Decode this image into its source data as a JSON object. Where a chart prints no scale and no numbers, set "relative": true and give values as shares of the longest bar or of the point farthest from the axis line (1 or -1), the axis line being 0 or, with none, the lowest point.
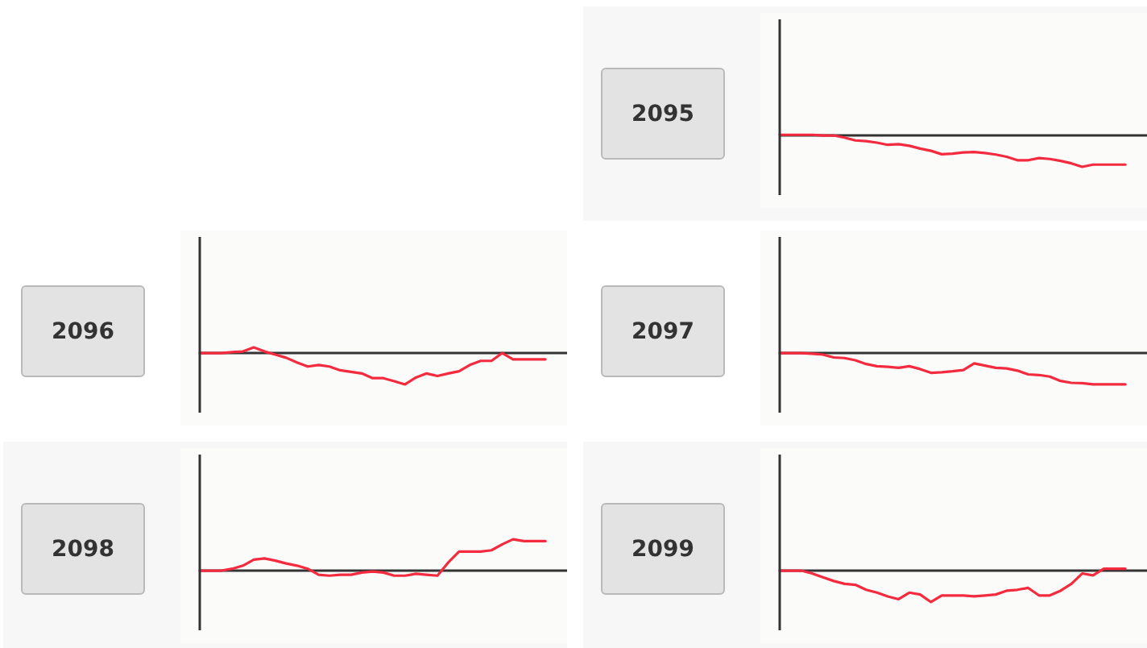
{
  "chart_data": [
    {
      "type": "line",
      "title": "2095",
      "relative": true,
      "color": "#f42a3e",
      "categories": [
        null,
        null,
        null,
        null,
        null,
        null,
        null,
        null,
        null,
        null,
        null,
        null,
        null,
        null,
        null,
        null,
        null,
        null,
        null,
        null,
        null,
        null,
        null,
        null,
        null,
        null,
        null,
        null,
        null,
        null,
        null,
        null,
        null,
        null,
        null
      ],
      "values": [
        0.02,
        0.02,
        0.02,
        0.02,
        0,
        0,
        -0.07,
        -0.16,
        -0.18,
        -0.23,
        -0.3,
        -0.28,
        -0.33,
        -0.42,
        -0.49,
        -0.6,
        -0.58,
        -0.54,
        -0.53,
        -0.56,
        -0.61,
        -0.68,
        -0.79,
        -0.79,
        -0.72,
        -0.75,
        -0.81,
        -0.89,
        -1,
        -0.93,
        -0.93,
        -0.93,
        -0.93,
        null,
        null
      ]
    },
    {
      "type": "line",
      "title": "2096",
      "relative": true,
      "color": "#f42a3e",
      "categories": [
        null,
        null,
        null,
        null,
        null,
        null,
        null,
        null,
        null,
        null,
        null,
        null,
        null,
        null,
        null,
        null,
        null,
        null,
        null,
        null,
        null,
        null,
        null,
        null,
        null,
        null,
        null,
        null,
        null,
        null,
        null,
        null,
        null,
        null,
        null
      ],
      "values": [
        0,
        0,
        0,
        0.03,
        0.05,
        0.18,
        0.05,
        -0.05,
        -0.15,
        -0.3,
        -0.43,
        -0.38,
        -0.43,
        -0.55,
        -0.6,
        -0.65,
        -0.8,
        -0.8,
        -0.9,
        -1,
        -0.78,
        -0.65,
        -0.73,
        -0.65,
        -0.58,
        -0.38,
        -0.25,
        -0.25,
        0,
        -0.2,
        -0.2,
        -0.2,
        -0.2,
        null,
        null
      ]
    },
    {
      "type": "line",
      "title": "2097",
      "relative": true,
      "color": "#f42a3e",
      "categories": [
        null,
        null,
        null,
        null,
        null,
        null,
        null,
        null,
        null,
        null,
        null,
        null,
        null,
        null,
        null,
        null,
        null,
        null,
        null,
        null,
        null,
        null,
        null,
        null,
        null,
        null,
        null,
        null,
        null,
        null,
        null,
        null,
        null,
        null,
        null
      ],
      "values": [
        0,
        0,
        0,
        -0.02,
        -0.05,
        -0.14,
        -0.16,
        -0.23,
        -0.35,
        -0.42,
        -0.44,
        -0.47,
        -0.42,
        -0.51,
        -0.63,
        -0.61,
        -0.58,
        -0.54,
        -0.33,
        -0.4,
        -0.47,
        -0.49,
        -0.56,
        -0.68,
        -0.7,
        -0.75,
        -0.89,
        -0.95,
        -0.96,
        -1,
        -1,
        -1,
        -1,
        null,
        null
      ]
    },
    {
      "type": "line",
      "title": "2098",
      "relative": true,
      "color": "#f42a3e",
      "categories": [
        null,
        null,
        null,
        null,
        null,
        null,
        null,
        null,
        null,
        null,
        null,
        null,
        null,
        null,
        null,
        null,
        null,
        null,
        null,
        null,
        null,
        null,
        null,
        null,
        null,
        null,
        null,
        null,
        null,
        null,
        null,
        null,
        null,
        null,
        null
      ],
      "values": [
        0,
        0,
        0,
        0.06,
        0.16,
        0.35,
        0.39,
        0.32,
        0.23,
        0.16,
        0.06,
        -0.13,
        -0.16,
        -0.13,
        -0.13,
        -0.06,
        -0.03,
        -0.06,
        -0.16,
        -0.16,
        -0.1,
        -0.13,
        -0.16,
        0.26,
        0.61,
        0.61,
        0.61,
        0.65,
        0.84,
        1,
        0.94,
        0.94,
        0.94,
        null,
        null
      ]
    },
    {
      "type": "line",
      "title": "2099",
      "relative": true,
      "color": "#f42a3e",
      "categories": [
        null,
        null,
        null,
        null,
        null,
        null,
        null,
        null,
        null,
        null,
        null,
        null,
        null,
        null,
        null,
        null,
        null,
        null,
        null,
        null,
        null,
        null,
        null,
        null,
        null,
        null,
        null,
        null,
        null,
        null,
        null,
        null,
        null,
        null,
        null
      ],
      "values": [
        0,
        0,
        0,
        -0.09,
        -0.21,
        -0.33,
        -0.42,
        -0.45,
        -0.61,
        -0.7,
        -0.82,
        -0.91,
        -0.7,
        -0.76,
        -1,
        -0.79,
        -0.79,
        -0.79,
        -0.82,
        -0.79,
        -0.76,
        -0.64,
        -0.61,
        -0.55,
        -0.79,
        -0.79,
        -0.64,
        -0.42,
        -0.09,
        -0.15,
        0.06,
        0.06,
        0.06,
        null,
        null
      ]
    }
  ]
}
